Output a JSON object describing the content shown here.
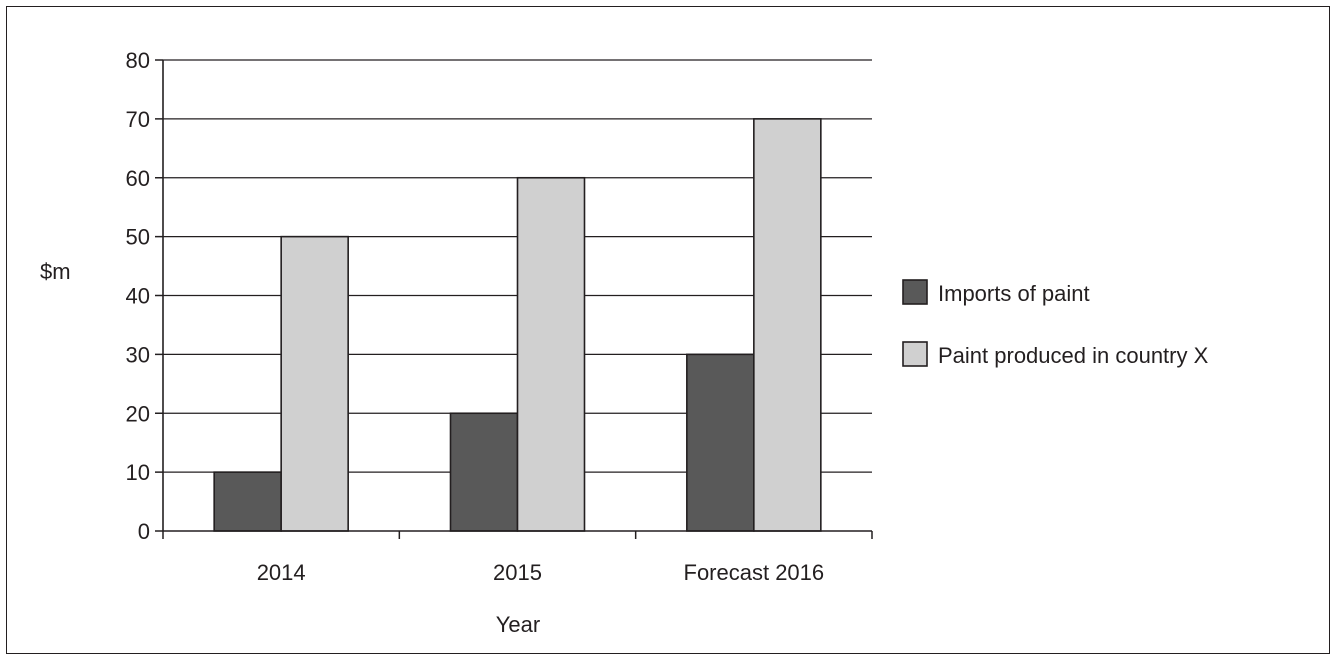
{
  "chart_data": {
    "type": "bar",
    "categories": [
      "2014",
      "2015",
      "Forecast 2016"
    ],
    "series": [
      {
        "name": "Imports of paint",
        "values": [
          10,
          20,
          30
        ],
        "color": "#595959"
      },
      {
        "name": "Paint produced in country X",
        "values": [
          50,
          60,
          70
        ],
        "color": "#d0d0d0"
      }
    ],
    "xlabel": "Year",
    "ylabel": "$m",
    "ylim": [
      0,
      80
    ],
    "yticks": [
      0,
      10,
      20,
      30,
      40,
      50,
      60,
      70,
      80
    ],
    "ytick_labels": [
      "0",
      "10",
      "20",
      "30",
      "40",
      "50",
      "60",
      "70",
      "80"
    ],
    "grid": true,
    "legend_position": "right",
    "colors": {
      "line": "#231f20",
      "frame": "#231f20"
    }
  }
}
